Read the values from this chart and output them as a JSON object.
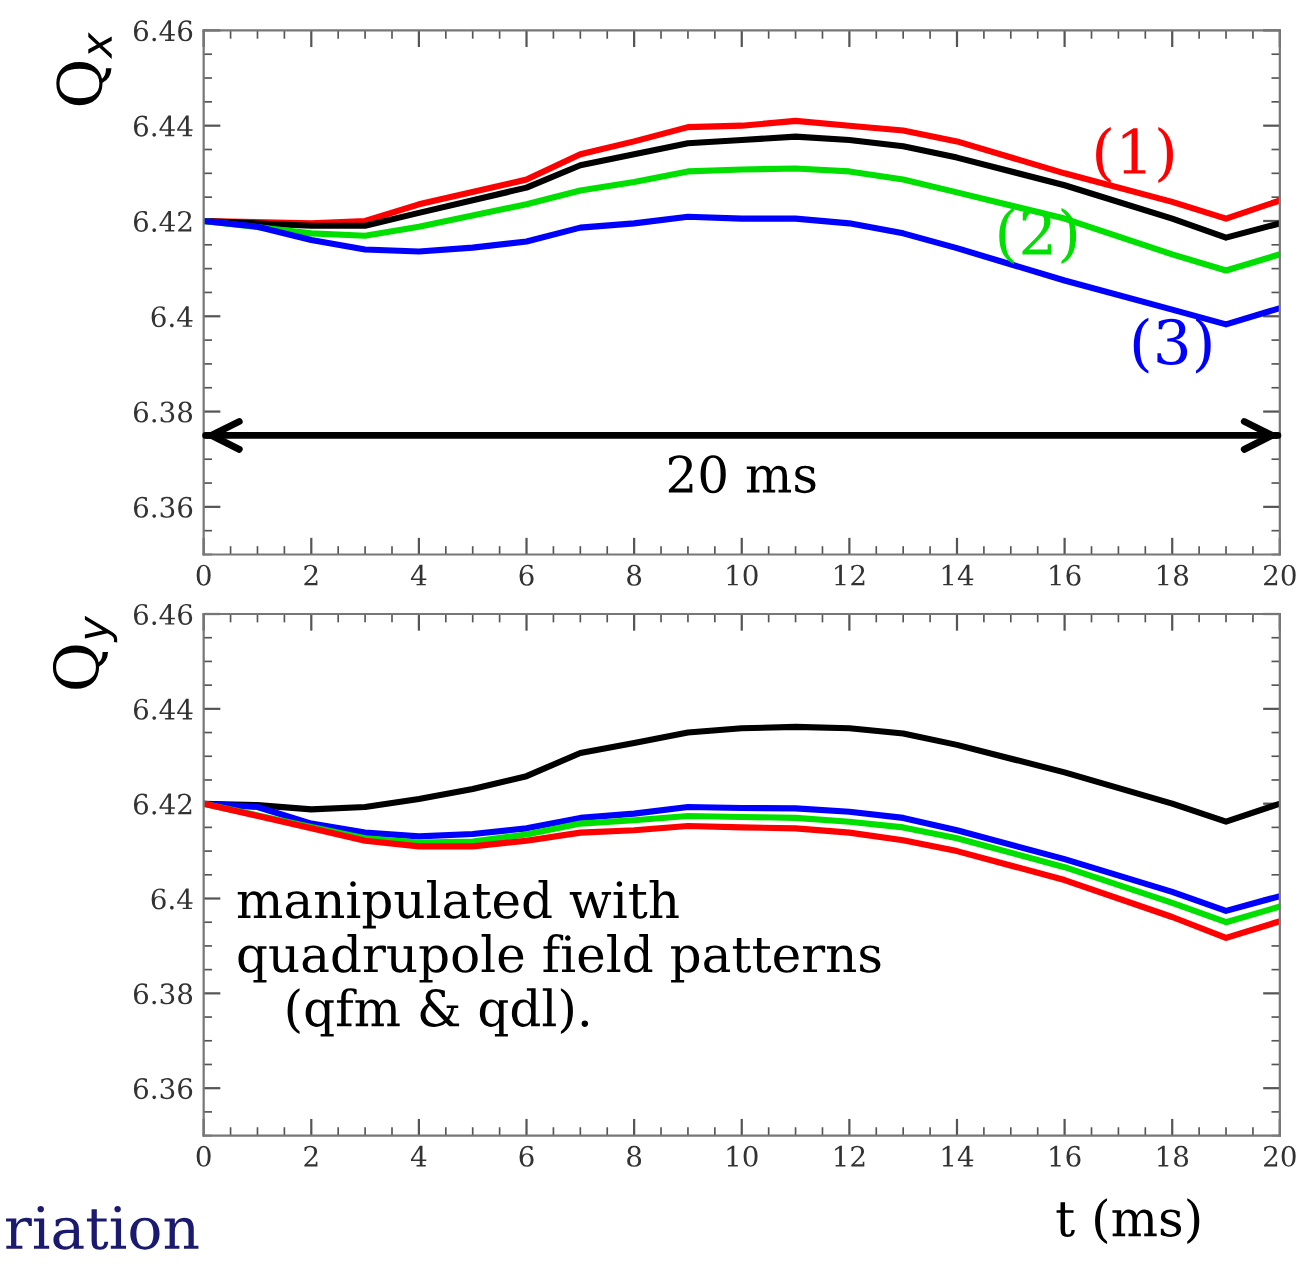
{
  "chart_data": [
    {
      "type": "line",
      "ylabel": "Q$_{x}$",
      "xlim": [
        0,
        20
      ],
      "xticks": [
        0,
        2,
        4,
        6,
        8,
        10,
        12,
        14,
        16,
        18,
        20
      ],
      "ylim": [
        6.35,
        6.46
      ],
      "yticks": [
        6.36,
        6.38,
        {
          "value": 6.4,
          "label": "6.4"
        },
        6.42,
        6.44,
        6.46
      ],
      "grid": false,
      "legend": false,
      "ref_lines": [
        {
          "axis": "y",
          "value": 6.375,
          "label": "20 ms",
          "color": "#000000"
        }
      ],
      "series": [
        {
          "name": "(1)",
          "color": "#ff0000",
          "x": [
            0,
            2,
            3,
            4,
            6,
            7,
            8,
            9,
            10,
            11,
            12,
            13,
            14,
            16,
            18,
            19,
            20
          ],
          "values": [
            6.42,
            6.4195,
            6.42,
            6.4235,
            6.4287,
            6.434,
            6.4367,
            6.4397,
            6.44,
            6.441,
            6.44,
            6.439,
            6.4367,
            6.43,
            6.424,
            6.4205,
            6.4243
          ]
        },
        {
          "color": "#000000",
          "x": [
            0,
            2,
            3,
            4,
            6,
            7,
            8,
            9,
            10,
            11,
            12,
            13,
            14,
            16,
            18,
            19,
            20
          ],
          "values": [
            6.42,
            6.419,
            6.419,
            6.4217,
            6.427,
            6.4317,
            6.434,
            6.4363,
            6.437,
            6.4377,
            6.437,
            6.4357,
            6.4333,
            6.4275,
            6.4205,
            6.4165,
            6.4195
          ]
        },
        {
          "name": "(2)",
          "color": "#00e000",
          "x": [
            0,
            2,
            3,
            4,
            6,
            7,
            8,
            9,
            10,
            11,
            12,
            13,
            14,
            16,
            18,
            19,
            20
          ],
          "values": [
            6.42,
            6.4174,
            6.4169,
            6.4188,
            6.4235,
            6.4264,
            6.4282,
            6.4304,
            6.4308,
            6.431,
            6.4304,
            6.4287,
            6.426,
            6.4205,
            6.413,
            6.4096,
            6.413
          ]
        },
        {
          "name": "(3)",
          "color": "#0000ff",
          "x": [
            0,
            1,
            2,
            3,
            4,
            5,
            6,
            7,
            8,
            9,
            10,
            11,
            12,
            13,
            14,
            16,
            18,
            19,
            20
          ],
          "values": [
            6.42,
            6.4188,
            6.416,
            6.414,
            6.4136,
            6.4144,
            6.4157,
            6.4186,
            6.4195,
            6.4209,
            6.4205,
            6.4205,
            6.4195,
            6.4174,
            6.4143,
            6.4075,
            6.4014,
            6.3983,
            6.4017
          ]
        }
      ]
    },
    {
      "type": "line",
      "ylabel": "Q$_{y}$",
      "xlabel": "t (ms)",
      "xlim": [
        0,
        20
      ],
      "xticks": [
        0,
        2,
        4,
        6,
        8,
        10,
        12,
        14,
        16,
        18,
        20
      ],
      "ylim": [
        6.35,
        6.46
      ],
      "yticks": [
        6.36,
        6.38,
        {
          "value": 6.4,
          "label": "6.4"
        },
        6.42,
        6.44,
        6.46
      ],
      "grid": false,
      "legend": false,
      "annotations": [
        "manipulated with\nquadrupole field patterns\n   (qfm & qdl).",
        "riation"
      ],
      "series": [
        {
          "color": "#000000",
          "x": [
            0,
            1,
            2,
            3,
            4,
            5,
            6,
            7,
            8,
            9,
            10,
            11,
            12,
            13,
            14,
            16,
            18,
            19,
            20
          ],
          "values": [
            6.42,
            6.4197,
            6.4188,
            6.4193,
            6.421,
            6.4231,
            6.4258,
            6.4307,
            6.4328,
            6.435,
            6.4359,
            6.4362,
            6.4359,
            6.4348,
            6.4324,
            6.4266,
            6.42,
            6.4162,
            6.42
          ]
        },
        {
          "color": "#0000ff",
          "x": [
            0,
            1,
            2,
            3,
            4,
            5,
            6,
            7,
            8,
            9,
            10,
            11,
            12,
            13,
            14,
            16,
            18,
            19,
            20
          ],
          "values": [
            6.42,
            6.4193,
            6.4158,
            6.4139,
            6.4131,
            6.4136,
            6.4148,
            6.417,
            6.4179,
            6.4193,
            6.4191,
            6.419,
            6.4183,
            6.417,
            6.4144,
            6.4083,
            6.4014,
            6.3974,
            6.4005
          ]
        },
        {
          "color": "#00e000",
          "x": [
            0,
            2,
            3,
            4,
            5,
            6,
            7,
            8,
            9,
            10,
            11,
            12,
            13,
            14,
            16,
            18,
            19,
            20
          ],
          "values": [
            6.42,
            6.4151,
            6.4127,
            6.4118,
            6.412,
            6.4135,
            6.4158,
            6.4165,
            6.4174,
            6.4172,
            6.417,
            6.4162,
            6.415,
            6.4127,
            6.4066,
            6.3991,
            6.395,
            6.3983
          ]
        },
        {
          "color": "#ff0000",
          "x": [
            0,
            2,
            3,
            4,
            5,
            6,
            7,
            8,
            9,
            10,
            11,
            12,
            13,
            14,
            16,
            18,
            19,
            20
          ],
          "values": [
            6.42,
            6.4148,
            6.4122,
            6.411,
            6.411,
            6.4122,
            6.4139,
            6.4144,
            6.4153,
            6.415,
            6.4148,
            6.4139,
            6.4123,
            6.41,
            6.4039,
            6.3961,
            6.3917,
            6.3952
          ]
        }
      ]
    }
  ]
}
